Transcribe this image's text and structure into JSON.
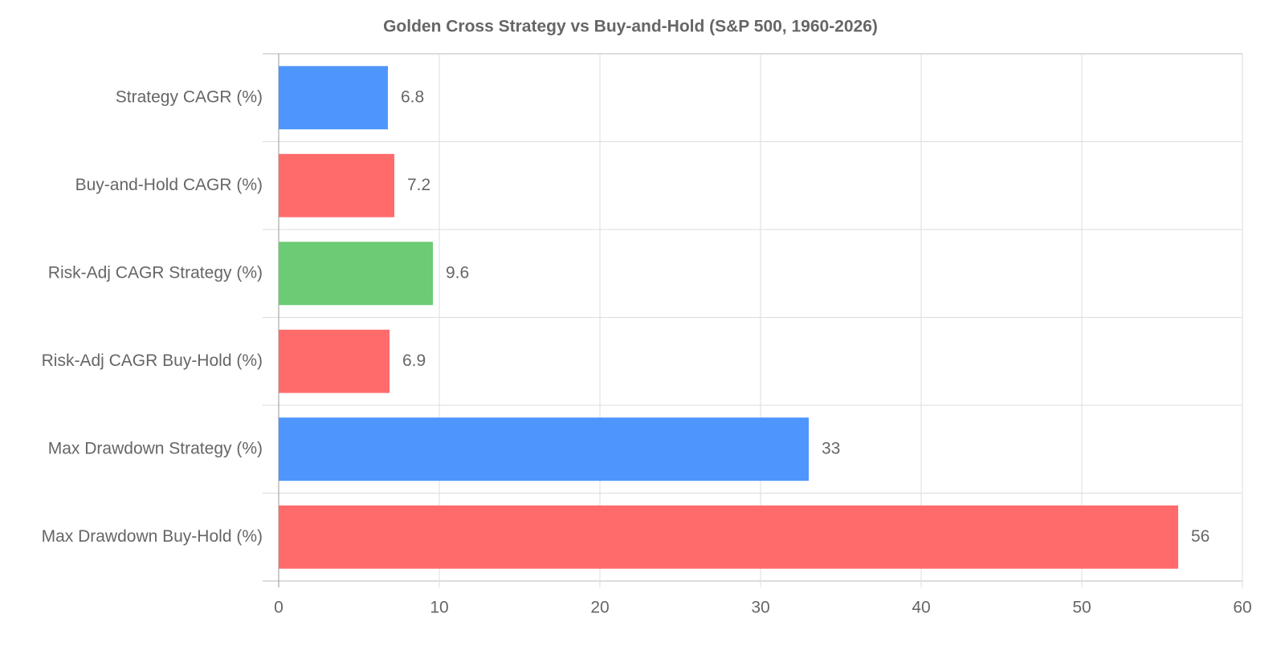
{
  "chart_data": {
    "type": "hbar",
    "title": "Golden Cross Strategy vs Buy-and-Hold (S&P 500, 1960-2026)",
    "categories": [
      "Strategy CAGR (%)",
      "Buy-and-Hold CAGR (%)",
      "Risk-Adj CAGR Strategy (%)",
      "Risk-Adj CAGR Buy-Hold (%)",
      "Max Drawdown Strategy (%)",
      "Max Drawdown Buy-Hold (%)"
    ],
    "values": [
      6.8,
      7.2,
      9.6,
      6.9,
      33,
      56
    ],
    "colors": [
      "#4e95fe",
      "#ff6b6b",
      "#6ccb75",
      "#ff6b6b",
      "#4e95fe",
      "#ff6b6b"
    ],
    "xlim": [
      0,
      60
    ],
    "xticks": [
      0,
      10,
      20,
      30,
      40,
      50,
      60
    ],
    "grid": true
  }
}
